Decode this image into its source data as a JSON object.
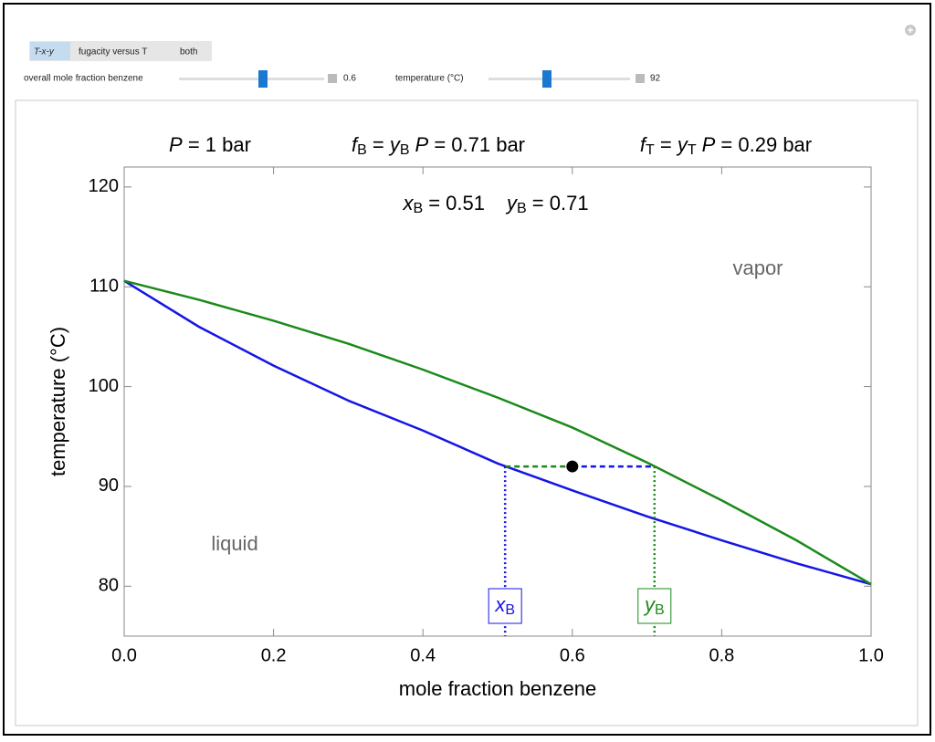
{
  "controls": {
    "tabs": [
      "T-x-y",
      "fugacity versus T",
      "both"
    ],
    "sliders": [
      {
        "label": "overall mole fraction benzene",
        "value": "0.6"
      },
      {
        "label": "temperature (°C)",
        "value": "92"
      }
    ]
  },
  "chart_data": {
    "type": "line",
    "headline": {
      "pressure": [
        "P",
        " = 1 bar"
      ],
      "fugacity_benzene": [
        "f",
        "B",
        " = ",
        "y",
        "B",
        "P",
        " = 0.71 bar"
      ],
      "fugacity_toluene": [
        "f",
        "T",
        " = ",
        "y",
        "T",
        "P",
        " = 0.29 bar"
      ],
      "compositions": [
        "x",
        "B",
        " = 0.51",
        "y",
        "B",
        " = 0.71"
      ]
    },
    "x_label": "mole fraction benzene",
    "y_label": "temperature (°C)",
    "region_labels": [
      "liquid",
      "vapor"
    ],
    "x": [
      0,
      0.1,
      0.2,
      0.3,
      0.4,
      0.5,
      0.6,
      0.7,
      0.8,
      0.9,
      1.0
    ],
    "series": [
      {
        "color": "#1515e6",
        "values": [
          110.6,
          106.0,
          102.1,
          98.6,
          95.6,
          92.3,
          89.6,
          87.0,
          84.6,
          82.3,
          80.2
        ]
      },
      {
        "color": "#1a8a1a",
        "values": [
          110.6,
          108.7,
          106.6,
          104.3,
          101.7,
          98.9,
          95.9,
          92.4,
          88.6,
          84.6,
          80.2
        ]
      }
    ],
    "point": {
      "x": 0.6,
      "y": 92
    },
    "tie_line": {
      "x_liquid": 0.51,
      "x_vapor": 0.71,
      "y": 92
    },
    "markers": [
      [
        "x",
        "B"
      ],
      [
        "y",
        "B"
      ]
    ],
    "xlim": [
      0,
      1
    ],
    "ylim": [
      75,
      122
    ],
    "xticks": [
      {
        "value": 0,
        "label": "0.0"
      },
      0.2,
      0.4,
      0.6,
      0.8,
      {
        "value": 1,
        "label": "1.0"
      }
    ],
    "yticks": [
      80,
      90,
      100,
      110,
      120
    ]
  }
}
